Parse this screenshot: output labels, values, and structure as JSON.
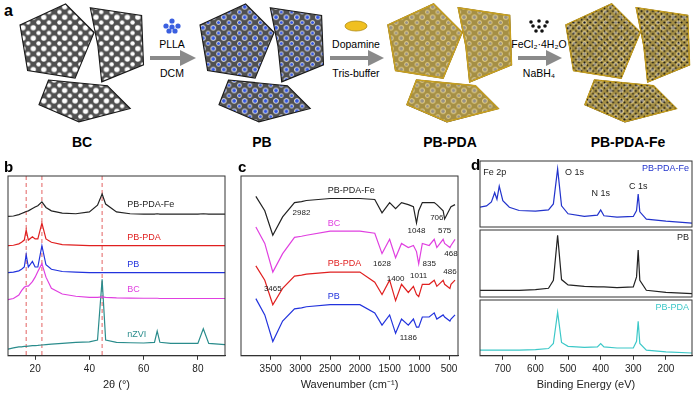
{
  "schematic": {
    "panel_label": "a",
    "stages": [
      "BC",
      "PB",
      "PB-PDA",
      "PB-PDA-Fe"
    ],
    "steps": [
      {
        "reagent": "PLLA",
        "solvent": "DCM"
      },
      {
        "reagent": "Dopamine",
        "solvent": "Tris-buffer"
      },
      {
        "reagent": "FeCl₂·4H₂O",
        "solvent": "NaBH₄"
      }
    ]
  },
  "chart_data": [
    {
      "panel_label": "b",
      "type": "line",
      "x_label": "2θ (°)",
      "x": [
        10,
        12,
        14,
        15,
        16,
        16.7,
        17.5,
        19,
        20,
        21,
        22.5,
        24,
        26,
        30,
        35,
        40,
        43,
        44.7,
        46,
        50,
        55,
        60,
        64,
        65,
        66,
        70,
        75,
        80,
        82,
        84,
        90
      ],
      "xlim": [
        10,
        90
      ],
      "xticks": [
        20,
        40,
        60,
        80
      ],
      "ylim": [
        0,
        8
      ],
      "tick_labels": "x",
      "grid": false,
      "reference_lines": {
        "x": [
          16.7,
          22.5,
          44.7
        ],
        "color": "#e05050",
        "line_style": "dashed"
      },
      "series": [
        {
          "name": "PB-PDA-Fe",
          "color": "#222222",
          "values": [
            6.2,
            6.22,
            6.28,
            6.33,
            6.38,
            6.42,
            6.45,
            6.55,
            6.62,
            6.68,
            6.85,
            6.6,
            6.45,
            6.35,
            6.32,
            6.4,
            6.7,
            7.2,
            6.75,
            6.4,
            6.32,
            6.3,
            6.3,
            6.32,
            6.3,
            6.3,
            6.3,
            6.3,
            6.32,
            6.3,
            6.3
          ]
        },
        {
          "name": "PB-PDA",
          "color": "#e02020",
          "values": [
            4.9,
            4.92,
            4.98,
            5.05,
            5.15,
            5.6,
            5.15,
            5.3,
            5.2,
            5.2,
            5.9,
            5.2,
            5.05,
            4.95,
            4.92,
            4.9,
            4.9,
            4.9,
            4.9,
            4.9,
            4.9,
            4.9,
            4.9,
            4.9,
            4.9,
            4.9,
            4.9,
            4.9,
            4.9,
            4.9,
            4.9
          ]
        },
        {
          "name": "PB",
          "color": "#2233dd",
          "values": [
            3.7,
            3.72,
            3.78,
            3.85,
            3.95,
            4.5,
            3.95,
            4.2,
            3.95,
            3.95,
            4.9,
            4.05,
            3.85,
            3.75,
            3.72,
            3.7,
            3.7,
            3.7,
            3.7,
            3.7,
            3.7,
            3.7,
            3.7,
            3.7,
            3.7,
            3.7,
            3.7,
            3.7,
            3.7,
            3.7,
            3.7
          ]
        },
        {
          "name": "BC",
          "color": "#e040e0",
          "values": [
            2.5,
            2.55,
            2.7,
            2.9,
            3.05,
            3.1,
            3.1,
            3.3,
            3.5,
            3.75,
            4.1,
            3.5,
            3.0,
            2.75,
            2.65,
            2.6,
            2.6,
            2.62,
            2.6,
            2.58,
            2.57,
            2.56,
            2.56,
            2.56,
            2.55,
            2.55,
            2.55,
            2.55,
            2.55,
            2.55,
            2.55
          ]
        },
        {
          "name": "nZVI",
          "color": "#2a8c8c",
          "values": [
            0.3,
            0.35,
            0.4,
            0.4,
            0.42,
            0.42,
            0.43,
            0.45,
            0.45,
            0.46,
            0.48,
            0.5,
            0.52,
            0.55,
            0.6,
            0.62,
            0.7,
            3.4,
            0.7,
            0.6,
            0.58,
            0.57,
            0.6,
            1.1,
            0.6,
            0.55,
            0.55,
            0.55,
            1.2,
            0.55,
            0.5
          ]
        }
      ]
    },
    {
      "panel_label": "c",
      "type": "line",
      "x_label": "Wavenumber (cm⁻¹)",
      "x": [
        3750,
        3600,
        3465,
        3300,
        3100,
        2982,
        2900,
        2500,
        2000,
        1750,
        1628,
        1500,
        1400,
        1300,
        1186,
        1100,
        1048,
        1011,
        950,
        835,
        750,
        706,
        600,
        575,
        486,
        468,
        400
      ],
      "xlim": [
        4000,
        350
      ],
      "xticks": [
        3500,
        3000,
        2500,
        2000,
        1500,
        1000,
        500
      ],
      "ylim": [
        1.5,
        10.3
      ],
      "tick_labels": "x",
      "grid": false,
      "peak_labels": [
        {
          "x": 2982,
          "y": 8.5
        },
        {
          "x": 3465,
          "y": 4.8
        },
        {
          "x": 1628,
          "y": 6.0
        },
        {
          "x": 1400,
          "y": 5.25
        },
        {
          "x": 1048,
          "y": 7.6
        },
        {
          "x": 1011,
          "y": 5.4
        },
        {
          "x": 835,
          "y": 6.0
        },
        {
          "x": 706,
          "y": 8.25
        },
        {
          "x": 575,
          "y": 7.6
        },
        {
          "x": 486,
          "y": 5.6
        },
        {
          "x": 468,
          "y": 6.5
        },
        {
          "x": 1186,
          "y": 2.4
        }
      ],
      "series": [
        {
          "name": "PB-PDA-Fe",
          "color": "#222222",
          "values": [
            9.3,
            8.6,
            7.4,
            8.3,
            9.0,
            9.05,
            9.1,
            9.2,
            9.2,
            9.15,
            8.5,
            9.0,
            8.7,
            9.0,
            8.9,
            8.8,
            8.0,
            8.6,
            9.0,
            9.0,
            9.0,
            8.9,
            8.6,
            8.2,
            8.7,
            8.8,
            8.9
          ]
        },
        {
          "name": "BC",
          "color": "#e040e0",
          "values": [
            7.8,
            7.0,
            5.6,
            6.5,
            7.3,
            7.35,
            7.4,
            7.6,
            7.6,
            7.5,
            6.5,
            7.2,
            6.3,
            7.0,
            6.8,
            6.9,
            6.6,
            6.0,
            7.0,
            6.9,
            7.2,
            6.8,
            7.2,
            7.0,
            6.8,
            6.9,
            7.2
          ]
        },
        {
          "name": "PB-PDA",
          "color": "#e02020",
          "values": [
            5.9,
            5.2,
            4.0,
            4.8,
            5.4,
            5.45,
            5.5,
            5.6,
            5.6,
            5.1,
            4.5,
            5.2,
            4.2,
            5.0,
            4.6,
            4.9,
            4.5,
            4.4,
            5.0,
            5.0,
            5.2,
            4.9,
            5.2,
            5.0,
            4.8,
            5.0,
            5.2
          ]
        },
        {
          "name": "PB",
          "color": "#2233dd",
          "values": [
            4.3,
            3.5,
            2.2,
            3.2,
            3.8,
            3.85,
            3.9,
            4.0,
            4.0,
            3.6,
            3.0,
            3.5,
            2.6,
            3.3,
            3.0,
            3.3,
            2.9,
            2.9,
            3.4,
            3.4,
            3.6,
            3.3,
            3.5,
            3.4,
            3.2,
            3.3,
            3.5
          ]
        }
      ]
    },
    {
      "panel_label": "d",
      "type": "line",
      "x": [
        770,
        750,
        735,
        725,
        718,
        711,
        700,
        680,
        650,
        600,
        560,
        545,
        532,
        520,
        500,
        450,
        410,
        400,
        390,
        350,
        300,
        290,
        285,
        280,
        260,
        200,
        120
      ],
      "xlim": [
        770,
        120
      ],
      "ylim": [
        0,
        10
      ],
      "tick_labels": false,
      "grid": false,
      "annotations": [
        {
          "text": "Fe 2p",
          "x": 725,
          "y": 8.3
        },
        {
          "text": "O 1s",
          "x": 480,
          "y": 8.3
        },
        {
          "text": "N 1s",
          "x": 400,
          "y": 5.0
        },
        {
          "text": "C 1s",
          "x": 285,
          "y": 6.2
        }
      ],
      "series": [
        {
          "name": "PB-PDA-Fe",
          "color": "#2233cc",
          "values": [
            3.0,
            3.2,
            3.8,
            5.2,
            4.2,
            6.2,
            4.0,
            3.0,
            2.5,
            2.4,
            2.6,
            3.5,
            8.8,
            3.2,
            2.0,
            1.6,
            1.8,
            2.6,
            1.7,
            1.5,
            1.6,
            2.5,
            5.0,
            2.3,
            1.2,
            0.9,
            0.6
          ]
        }
      ]
    },
    {
      "type": "line",
      "x": [
        770,
        750,
        735,
        725,
        718,
        711,
        700,
        680,
        650,
        600,
        560,
        545,
        532,
        520,
        500,
        450,
        410,
        400,
        390,
        350,
        300,
        290,
        285,
        280,
        260,
        200,
        120
      ],
      "xlim": [
        770,
        120
      ],
      "ylim": [
        0,
        10
      ],
      "tick_labels": false,
      "grid": false,
      "series": [
        {
          "name": "PB",
          "color": "#222222",
          "values": [
            1.0,
            1.0,
            1.0,
            1.0,
            1.0,
            1.0,
            1.0,
            1.0,
            1.0,
            1.1,
            1.3,
            2.5,
            9.2,
            2.6,
            1.8,
            1.6,
            1.5,
            1.5,
            1.5,
            1.4,
            1.5,
            3.0,
            7.0,
            2.5,
            1.0,
            0.7,
            0.5
          ]
        }
      ]
    },
    {
      "type": "line",
      "x_label": "Binding Energy (eV)",
      "x": [
        770,
        750,
        735,
        725,
        718,
        711,
        700,
        680,
        650,
        600,
        560,
        545,
        532,
        520,
        500,
        450,
        410,
        400,
        390,
        350,
        300,
        290,
        285,
        280,
        260,
        200,
        120
      ],
      "xlim": [
        770,
        120
      ],
      "xticks": [
        700,
        600,
        500,
        400,
        300,
        200
      ],
      "ylim": [
        0,
        10
      ],
      "tick_labels": "x",
      "grid": false,
      "series": [
        {
          "name": "PB-PDA",
          "color": "#3cc8c8",
          "values": [
            1.0,
            1.0,
            1.0,
            1.0,
            1.0,
            1.0,
            1.0,
            1.0,
            1.0,
            1.1,
            1.3,
            2.2,
            7.8,
            2.4,
            1.7,
            1.5,
            1.6,
            2.2,
            1.6,
            1.4,
            1.4,
            2.6,
            6.2,
            2.2,
            1.0,
            0.7,
            0.5
          ]
        }
      ]
    }
  ]
}
